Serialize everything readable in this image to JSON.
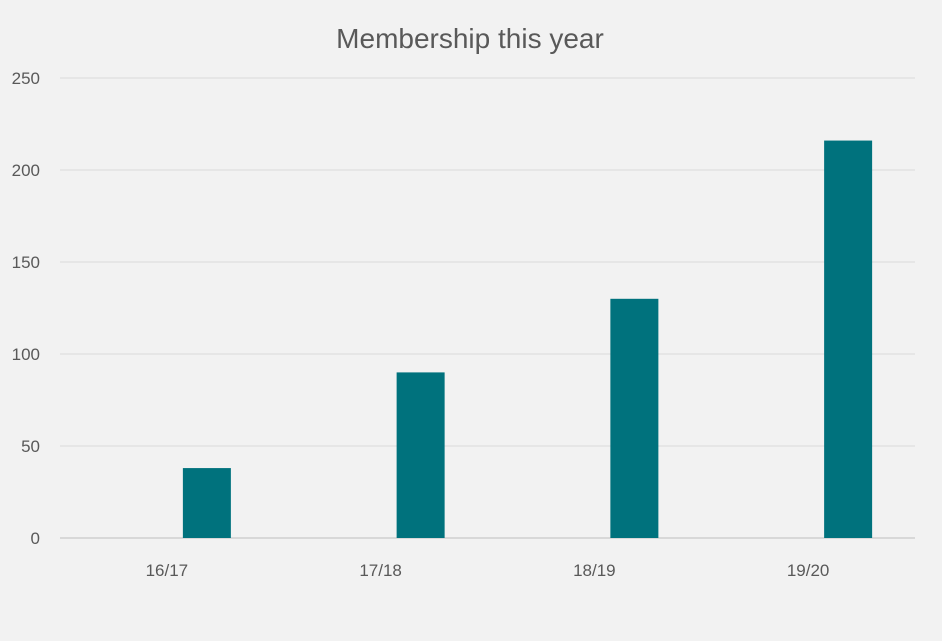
{
  "chart_data": {
    "type": "bar",
    "title": "Membership this year",
    "xlabel": "",
    "ylabel": "",
    "categories": [
      "16/17",
      "17/18",
      "18/19",
      "19/20"
    ],
    "values": [
      38,
      90,
      130,
      216
    ],
    "ylim": [
      0,
      250
    ],
    "yticks": [
      0,
      50,
      100,
      150,
      200,
      250
    ],
    "grid": true,
    "bar_color": "#00727d"
  }
}
